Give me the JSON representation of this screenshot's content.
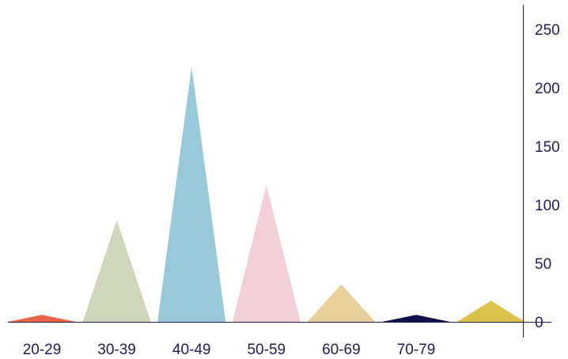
{
  "chart_data": {
    "type": "bar",
    "mark_shape": "triangle",
    "title": "",
    "xlabel": "",
    "ylabel": "",
    "ylim": [
      0,
      250
    ],
    "y_axis_position": "right",
    "y_ticks": [
      "0",
      "50",
      "100",
      "150",
      "200",
      "250"
    ],
    "grid": false,
    "categories": [
      "20-29",
      "30-39",
      "40-49",
      "50-59",
      "60-69",
      "70-79",
      ""
    ],
    "values": [
      6,
      87,
      218,
      117,
      32,
      6,
      18
    ],
    "colors": [
      "#e8654a",
      "#cdd7bc",
      "#99c8d8",
      "#f2d0d5",
      "#e8d09c",
      "#11114a",
      "#d9c34c"
    ]
  }
}
